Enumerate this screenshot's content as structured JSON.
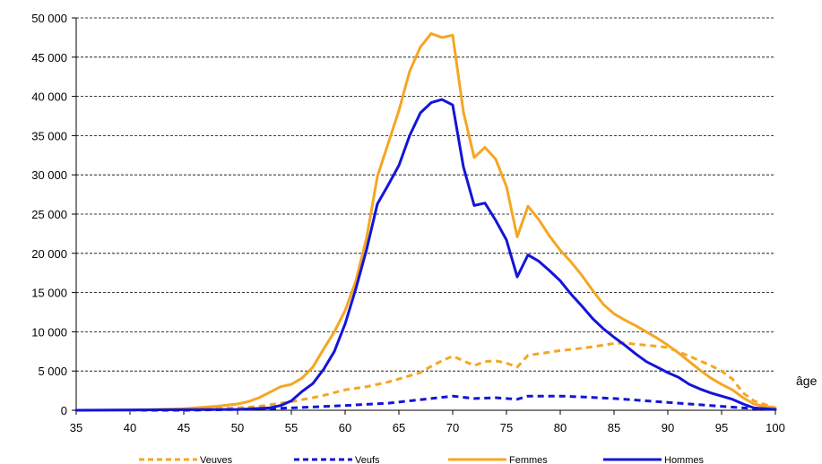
{
  "chart_data": {
    "type": "line",
    "title": "",
    "xlabel": "âge",
    "ylabel": "",
    "xlim": [
      35,
      100
    ],
    "ylim": [
      0,
      50000
    ],
    "x_ticks": [
      "35",
      "40",
      "45",
      "50",
      "55",
      "60",
      "65",
      "70",
      "75",
      "80",
      "85",
      "90",
      "95",
      "100"
    ],
    "y_ticks": [
      "0",
      "5 000",
      "10 000",
      "15 000",
      "20 000",
      "25 000",
      "30 000",
      "35 000",
      "40 000",
      "45 000",
      "50 000"
    ],
    "grid": "horizontal dashed",
    "legend_position": "bottom",
    "colors": {
      "orange": "#F5A623",
      "blue": "#1414D8"
    },
    "series": [
      {
        "name": "Veuves",
        "color": "#F5A623",
        "dash": true,
        "points": [
          [
            35,
            0
          ],
          [
            40,
            0
          ],
          [
            45,
            100
          ],
          [
            50,
            300
          ],
          [
            52,
            500
          ],
          [
            54,
            900
          ],
          [
            55,
            1100
          ],
          [
            57,
            1600
          ],
          [
            58,
            1900
          ],
          [
            60,
            2600
          ],
          [
            62,
            3000
          ],
          [
            64,
            3600
          ],
          [
            66,
            4400
          ],
          [
            67,
            4800
          ],
          [
            68,
            5600
          ],
          [
            69,
            6300
          ],
          [
            70,
            6900
          ],
          [
            71,
            6300
          ],
          [
            72,
            5700
          ],
          [
            73,
            6200
          ],
          [
            74,
            6300
          ],
          [
            75,
            6000
          ],
          [
            76,
            5500
          ],
          [
            77,
            7000
          ],
          [
            78,
            7200
          ],
          [
            80,
            7600
          ],
          [
            82,
            7900
          ],
          [
            84,
            8300
          ],
          [
            85,
            8500
          ],
          [
            86,
            8600
          ],
          [
            87,
            8400
          ],
          [
            88,
            8300
          ],
          [
            90,
            8000
          ],
          [
            92,
            6900
          ],
          [
            94,
            5700
          ],
          [
            95,
            5000
          ],
          [
            96,
            4000
          ],
          [
            97,
            2200
          ],
          [
            98,
            1200
          ],
          [
            100,
            300
          ]
        ]
      },
      {
        "name": "Veufs",
        "color": "#1414D8",
        "dash": true,
        "points": [
          [
            35,
            0
          ],
          [
            45,
            0
          ],
          [
            50,
            100
          ],
          [
            55,
            300
          ],
          [
            60,
            600
          ],
          [
            64,
            900
          ],
          [
            66,
            1200
          ],
          [
            68,
            1500
          ],
          [
            70,
            1800
          ],
          [
            72,
            1500
          ],
          [
            74,
            1600
          ],
          [
            75,
            1500
          ],
          [
            76,
            1400
          ],
          [
            77,
            1800
          ],
          [
            80,
            1800
          ],
          [
            82,
            1700
          ],
          [
            85,
            1500
          ],
          [
            88,
            1200
          ],
          [
            90,
            1000
          ],
          [
            93,
            700
          ],
          [
            95,
            500
          ],
          [
            97,
            300
          ],
          [
            100,
            100
          ]
        ]
      },
      {
        "name": "Femmes",
        "color": "#F5A623",
        "dash": false,
        "points": [
          [
            35,
            0
          ],
          [
            40,
            0
          ],
          [
            45,
            200
          ],
          [
            48,
            500
          ],
          [
            50,
            800
          ],
          [
            51,
            1100
          ],
          [
            52,
            1600
          ],
          [
            53,
            2300
          ],
          [
            54,
            3000
          ],
          [
            55,
            3300
          ],
          [
            56,
            4100
          ],
          [
            57,
            5500
          ],
          [
            58,
            7800
          ],
          [
            59,
            10000
          ],
          [
            60,
            12700
          ],
          [
            61,
            16500
          ],
          [
            62,
            22000
          ],
          [
            63,
            29800
          ],
          [
            64,
            34000
          ],
          [
            65,
            38200
          ],
          [
            66,
            43200
          ],
          [
            67,
            46300
          ],
          [
            68,
            48000
          ],
          [
            69,
            47500
          ],
          [
            70,
            47800
          ],
          [
            71,
            38000
          ],
          [
            72,
            32200
          ],
          [
            73,
            33500
          ],
          [
            74,
            32000
          ],
          [
            75,
            28500
          ],
          [
            76,
            22100
          ],
          [
            77,
            26000
          ],
          [
            78,
            24300
          ],
          [
            79,
            22200
          ],
          [
            80,
            20400
          ],
          [
            81,
            18900
          ],
          [
            82,
            17200
          ],
          [
            83,
            15300
          ],
          [
            84,
            13500
          ],
          [
            85,
            12300
          ],
          [
            86,
            11500
          ],
          [
            87,
            10800
          ],
          [
            88,
            10000
          ],
          [
            89,
            9200
          ],
          [
            90,
            8300
          ],
          [
            91,
            7300
          ],
          [
            92,
            6200
          ],
          [
            93,
            5100
          ],
          [
            94,
            4100
          ],
          [
            95,
            3300
          ],
          [
            96,
            2600
          ],
          [
            97,
            1600
          ],
          [
            98,
            800
          ],
          [
            99,
            500
          ],
          [
            100,
            300
          ]
        ]
      },
      {
        "name": "Hommes",
        "color": "#1414D8",
        "dash": false,
        "points": [
          [
            35,
            0
          ],
          [
            50,
            100
          ],
          [
            53,
            300
          ],
          [
            54,
            600
          ],
          [
            55,
            1200
          ],
          [
            56,
            2400
          ],
          [
            57,
            3400
          ],
          [
            58,
            5200
          ],
          [
            59,
            7500
          ],
          [
            60,
            11000
          ],
          [
            61,
            15500
          ],
          [
            62,
            20500
          ],
          [
            63,
            26300
          ],
          [
            64,
            28700
          ],
          [
            65,
            31200
          ],
          [
            66,
            35000
          ],
          [
            67,
            37900
          ],
          [
            68,
            39200
          ],
          [
            69,
            39600
          ],
          [
            70,
            38900
          ],
          [
            71,
            31000
          ],
          [
            72,
            26100
          ],
          [
            73,
            26400
          ],
          [
            74,
            24200
          ],
          [
            75,
            21700
          ],
          [
            76,
            17000
          ],
          [
            77,
            19800
          ],
          [
            78,
            19000
          ],
          [
            79,
            17800
          ],
          [
            80,
            16500
          ],
          [
            81,
            14800
          ],
          [
            82,
            13300
          ],
          [
            83,
            11700
          ],
          [
            84,
            10400
          ],
          [
            85,
            9300
          ],
          [
            86,
            8300
          ],
          [
            87,
            7200
          ],
          [
            88,
            6200
          ],
          [
            89,
            5500
          ],
          [
            90,
            4800
          ],
          [
            91,
            4200
          ],
          [
            92,
            3300
          ],
          [
            93,
            2700
          ],
          [
            94,
            2200
          ],
          [
            95,
            1800
          ],
          [
            96,
            1400
          ],
          [
            97,
            800
          ],
          [
            98,
            300
          ],
          [
            100,
            100
          ]
        ]
      }
    ]
  }
}
